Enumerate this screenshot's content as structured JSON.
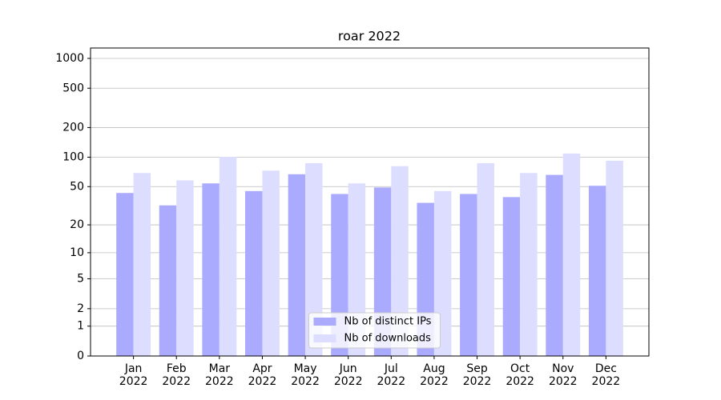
{
  "chart_data": {
    "type": "bar",
    "title": "roar 2022",
    "categories": [
      "Jan 2022",
      "Feb 2022",
      "Mar 2022",
      "Apr 2022",
      "May 2022",
      "Jun 2022",
      "Jul 2022",
      "Aug 2022",
      "Sep 2022",
      "Oct 2022",
      "Nov 2022",
      "Dec 2022"
    ],
    "series": [
      {
        "name": "Nb of distinct IPs",
        "color": "#aaaaff",
        "values": [
          43,
          32,
          54,
          45,
          67,
          42,
          49,
          34,
          42,
          39,
          66,
          51
        ]
      },
      {
        "name": "Nb of downloads",
        "color": "#ddddff",
        "values": [
          69,
          58,
          101,
          73,
          87,
          54,
          81,
          45,
          87,
          69,
          109,
          92
        ]
      }
    ],
    "yscale": "log1p",
    "ylim": [
      0,
      1273
    ],
    "yticks": [
      0,
      1,
      2,
      5,
      10,
      20,
      50,
      100,
      200,
      500,
      1000
    ],
    "grid": true,
    "legend": "lower center"
  }
}
